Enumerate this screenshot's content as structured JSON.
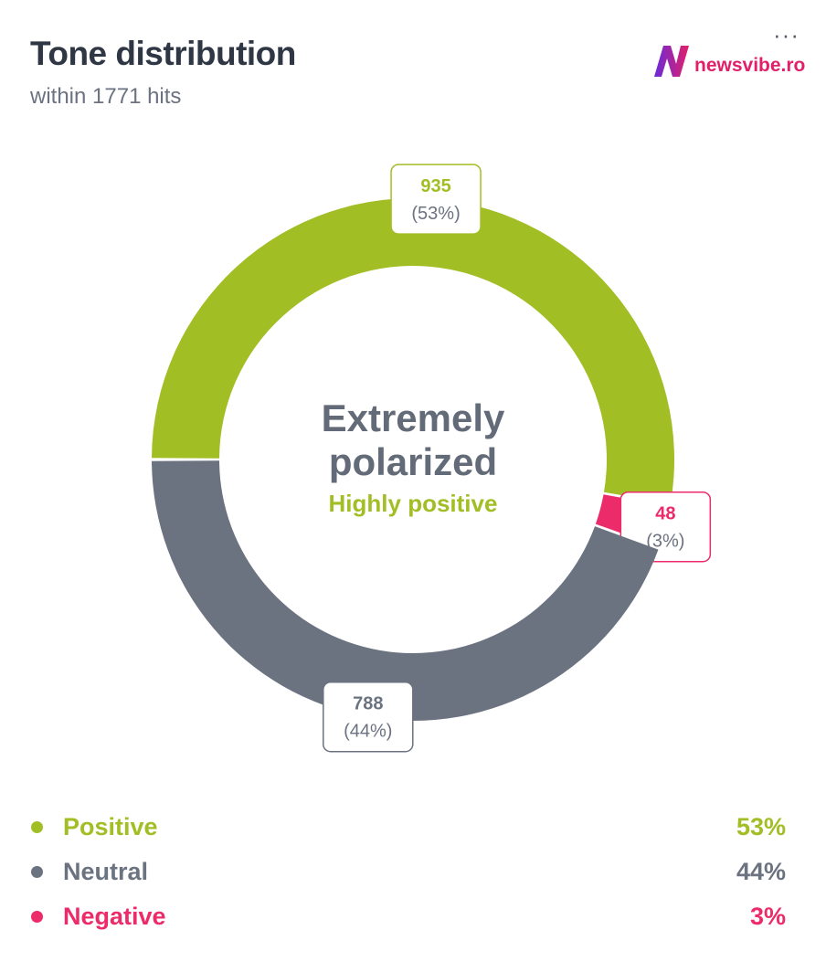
{
  "header": {
    "title": "Tone distribution",
    "subtitle": "within 1771 hits",
    "menu_icon": "more-dots-icon",
    "logo_text": "newsvibe.ro"
  },
  "center": {
    "line1": "Extremely",
    "line2": "polarized",
    "line3": "Highly positive"
  },
  "colors": {
    "positive": "#a2be25",
    "neutral": "#6b7280",
    "negative": "#ec2b6a"
  },
  "legend": [
    {
      "label": "Positive",
      "value": "53%"
    },
    {
      "label": "Neutral",
      "value": "44%"
    },
    {
      "label": "Negative",
      "value": "3%"
    }
  ],
  "chart_data": {
    "type": "pie",
    "donut": true,
    "title": "Tone distribution",
    "subtitle": "within 1771 hits",
    "categories": [
      "Positive",
      "Negative",
      "Neutral"
    ],
    "values": [
      935,
      48,
      788
    ],
    "percent_labels": [
      "(53%)",
      "(3%)",
      "(44%)"
    ],
    "legend_position": "bottom"
  }
}
